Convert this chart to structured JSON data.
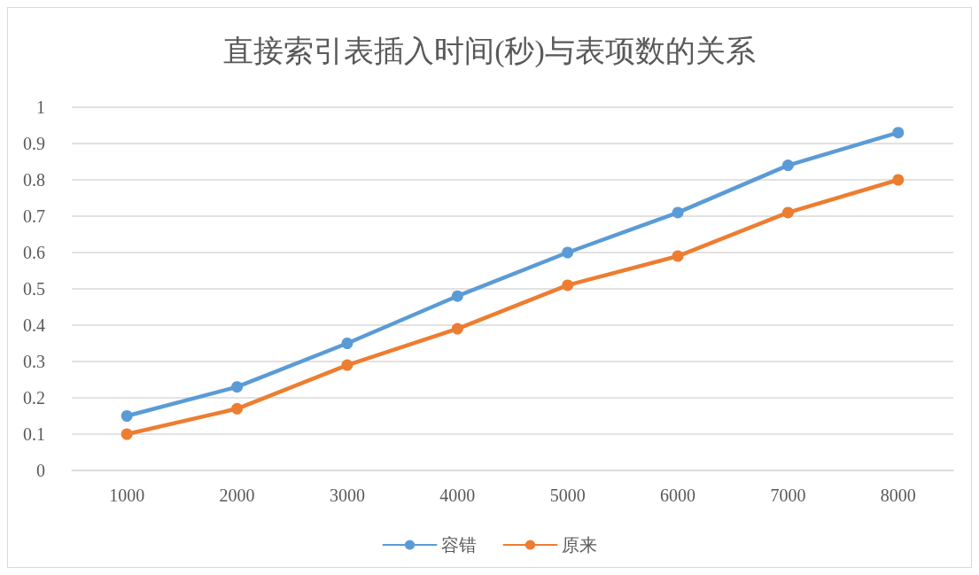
{
  "chart_data": {
    "type": "line",
    "title": "直接索引表插入时间(秒)与表项数的关系",
    "categories": [
      "1000",
      "2000",
      "3000",
      "4000",
      "5000",
      "6000",
      "7000",
      "8000"
    ],
    "series": [
      {
        "name": "容错",
        "color": "#5b9bd5",
        "values": [
          0.15,
          0.23,
          0.35,
          0.48,
          0.6,
          0.71,
          0.84,
          0.93
        ]
      },
      {
        "name": "原来",
        "color": "#ed7d31",
        "values": [
          0.1,
          0.17,
          0.29,
          0.39,
          0.51,
          0.59,
          0.71,
          0.8
        ]
      }
    ],
    "ylim": [
      0,
      1
    ],
    "yticks": [
      0,
      0.1,
      0.2,
      0.3,
      0.4,
      0.5,
      0.6,
      0.7,
      0.8,
      0.9,
      1
    ],
    "grid": "y",
    "legend": "bottom",
    "marker": "circle",
    "line_style": "solid"
  }
}
